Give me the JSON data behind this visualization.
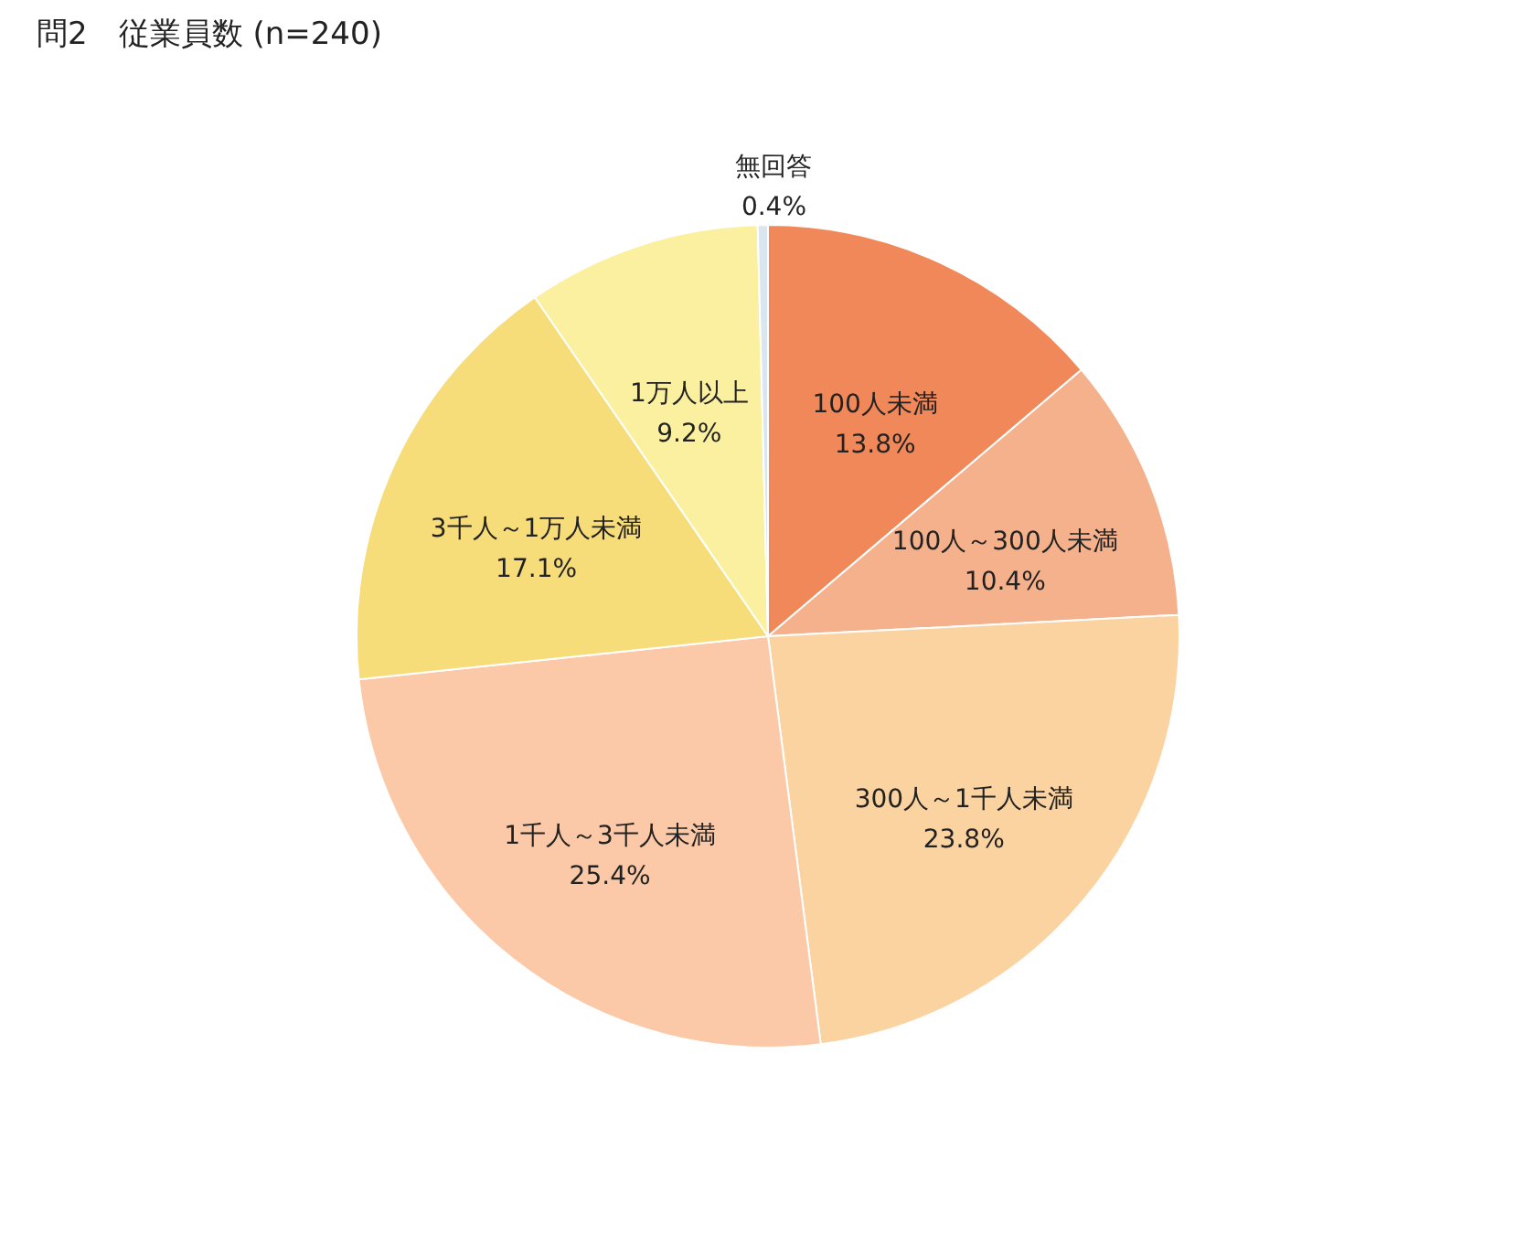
{
  "chart_data": {
    "type": "pie",
    "title": "問2　従業員数 (n=240)",
    "categories": [
      "100人未満",
      "100人～300人未満",
      "300人～1千人未満",
      "1千人～3千人未満",
      "3千人～1万人未満",
      "1万人以上",
      "無回答"
    ],
    "values": [
      13.8,
      10.4,
      23.8,
      25.4,
      17.1,
      9.2,
      0.4
    ],
    "value_labels": [
      "13.8%",
      "10.4%",
      "23.8%",
      "25.4%",
      "17.1%",
      "9.2%",
      "0.4%"
    ],
    "colors": [
      "#f0885a",
      "#f5b08c",
      "#fbd3a0",
      "#fbc9a8",
      "#f7dc7a",
      "#fbf0a0",
      "#d9e6f0"
    ],
    "legend": false
  }
}
